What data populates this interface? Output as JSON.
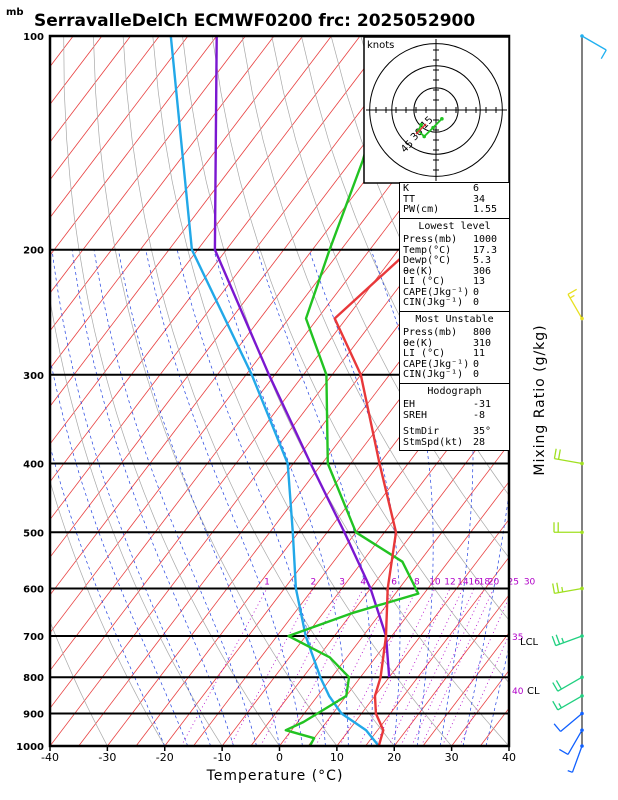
{
  "title": "SerravalleDelCh  ECMWF0200  frc: 2025052900",
  "unit_top": "mb",
  "xaxis_label": "Temperature (°C)",
  "right_label": "Mixing Ratio (g/kg)",
  "hodo_unit": "knots",
  "hodo_ring_labels": [
    "15",
    "30",
    "45"
  ],
  "lcl_labels": [
    "35",
    "LCL",
    "40",
    "CL"
  ],
  "stats": {
    "k_label": "K",
    "k": "6",
    "tt_label": "TT",
    "tt": "34",
    "pw_label": "PW(cm)",
    "pw": "1.55",
    "lowest_title": "Lowest level",
    "lowest": [
      {
        "label": "Press(mb)",
        "value": "1000"
      },
      {
        "label": "Temp(°C)",
        "value": "17.3"
      },
      {
        "label": "Dewp(°C)",
        "value": "5.3"
      },
      {
        "label": "θe(K)",
        "value": "306"
      },
      {
        "label": "LI (°C)",
        "value": "13"
      },
      {
        "label": "CAPE(Jkg⁻¹)",
        "value": "0"
      },
      {
        "label": "CIN(Jkg⁻¹)",
        "value": "0"
      }
    ],
    "unstable_title": "Most Unstable",
    "unstable": [
      {
        "label": "Press(mb)",
        "value": "800"
      },
      {
        "label": "θe(K)",
        "value": "310"
      },
      {
        "label": "LI (°C)",
        "value": "11"
      },
      {
        "label": "CAPE(Jkg⁻¹)",
        "value": "0"
      },
      {
        "label": "CIN(Jkg⁻¹)",
        "value": "0"
      }
    ],
    "hodo_title": "Hodograph",
    "hodo": [
      {
        "label": "EH",
        "value": "-31"
      },
      {
        "label": "SREH",
        "value": "-8"
      },
      {
        "label": "StmDir",
        "value": "35°"
      },
      {
        "label": "StmSpd(kt)",
        "value": "28"
      }
    ]
  },
  "chart_data": {
    "type": "line",
    "title": "SerravalleDelCh  ECMWF0200  frc: 2025052900",
    "xlabel": "Temperature (°C)",
    "ylabel": "mb",
    "xlim": [
      -40,
      40
    ],
    "ylim": [
      1000,
      100
    ],
    "y_scale": "log",
    "x_ticks": [
      -40,
      -30,
      -20,
      -10,
      0,
      10,
      20,
      30,
      40
    ],
    "pressure_levels": [
      1000,
      900,
      800,
      700,
      600,
      500,
      400,
      300,
      200,
      100
    ],
    "mixing_ratio_labels": [
      "1",
      "2",
      "3",
      "4",
      "6",
      "8",
      "10",
      "12",
      "14",
      "16",
      "18",
      "20",
      "25",
      "30"
    ],
    "mixing_ratio_values": [
      1,
      2,
      3,
      4,
      6,
      8,
      10,
      12,
      14,
      16,
      18,
      20,
      25,
      30
    ],
    "colors": {
      "temperature": "#e8383a",
      "dewpoint": "#22c322",
      "parcel": "#7a17d0",
      "virtual": "#22a8e8",
      "isotherm": "#e84040",
      "dry_adiabat": "#a8a8a8",
      "moist_adiabat": "#2040e0",
      "mixing": "#b000c8"
    },
    "series": [
      {
        "key": "temperature",
        "points": [
          [
            1000,
            17.3
          ],
          [
            950,
            16
          ],
          [
            900,
            12.5
          ],
          [
            850,
            10
          ],
          [
            800,
            8.5
          ],
          [
            700,
            4
          ],
          [
            600,
            -2
          ],
          [
            500,
            -8
          ],
          [
            400,
            -20
          ],
          [
            300,
            -35
          ],
          [
            250,
            -47
          ],
          [
            200,
            -43
          ],
          [
            150,
            -37
          ],
          [
            100,
            -28
          ]
        ]
      },
      {
        "key": "dewpoint",
        "points": [
          [
            1000,
            5.3
          ],
          [
            975,
            5
          ],
          [
            950,
            -1
          ],
          [
            925,
            1
          ],
          [
            850,
            5
          ],
          [
            800,
            3
          ],
          [
            750,
            -3
          ],
          [
            700,
            -13
          ],
          [
            650,
            -5
          ],
          [
            610,
            4
          ],
          [
            550,
            -3
          ],
          [
            500,
            -15
          ],
          [
            400,
            -29
          ],
          [
            300,
            -41
          ],
          [
            250,
            -52
          ],
          [
            200,
            -57
          ],
          [
            150,
            -63
          ],
          [
            100,
            -73
          ]
        ]
      },
      {
        "key": "parcel",
        "points": [
          [
            800,
            10
          ],
          [
            700,
            4
          ],
          [
            600,
            -5
          ],
          [
            500,
            -17
          ],
          [
            400,
            -32
          ],
          [
            300,
            -51
          ],
          [
            200,
            -77
          ],
          [
            100,
            -105
          ]
        ]
      },
      {
        "key": "virtual",
        "points": [
          [
            1000,
            17.3
          ],
          [
            950,
            13
          ],
          [
            900,
            6.5
          ],
          [
            850,
            2
          ],
          [
            800,
            -2
          ],
          [
            700,
            -10
          ],
          [
            600,
            -18
          ],
          [
            500,
            -26
          ],
          [
            400,
            -36
          ],
          [
            300,
            -54
          ],
          [
            200,
            -81
          ],
          [
            100,
            -113
          ]
        ]
      }
    ],
    "winds": [
      {
        "pressure": 1000,
        "dir": 20,
        "speed": 5
      },
      {
        "pressure": 950,
        "dir": 30,
        "speed": 8
      },
      {
        "pressure": 900,
        "dir": 50,
        "speed": 12
      },
      {
        "pressure": 850,
        "dir": 60,
        "speed": 15
      },
      {
        "pressure": 800,
        "dir": 60,
        "speed": 20
      },
      {
        "pressure": 700,
        "dir": 70,
        "speed": 25
      },
      {
        "pressure": 600,
        "dir": 80,
        "speed": 25
      },
      {
        "pressure": 500,
        "dir": 90,
        "speed": 20
      },
      {
        "pressure": 400,
        "dir": 100,
        "speed": 20
      },
      {
        "pressure": 250,
        "dir": 150,
        "speed": 15
      },
      {
        "pressure": 100,
        "dir": 300,
        "speed": 10
      }
    ],
    "hodograph_points": [
      [
        -10,
        -10
      ],
      [
        -12,
        -14
      ],
      [
        -8,
        -18
      ],
      [
        -2,
        -12
      ],
      [
        4,
        -6
      ]
    ]
  }
}
